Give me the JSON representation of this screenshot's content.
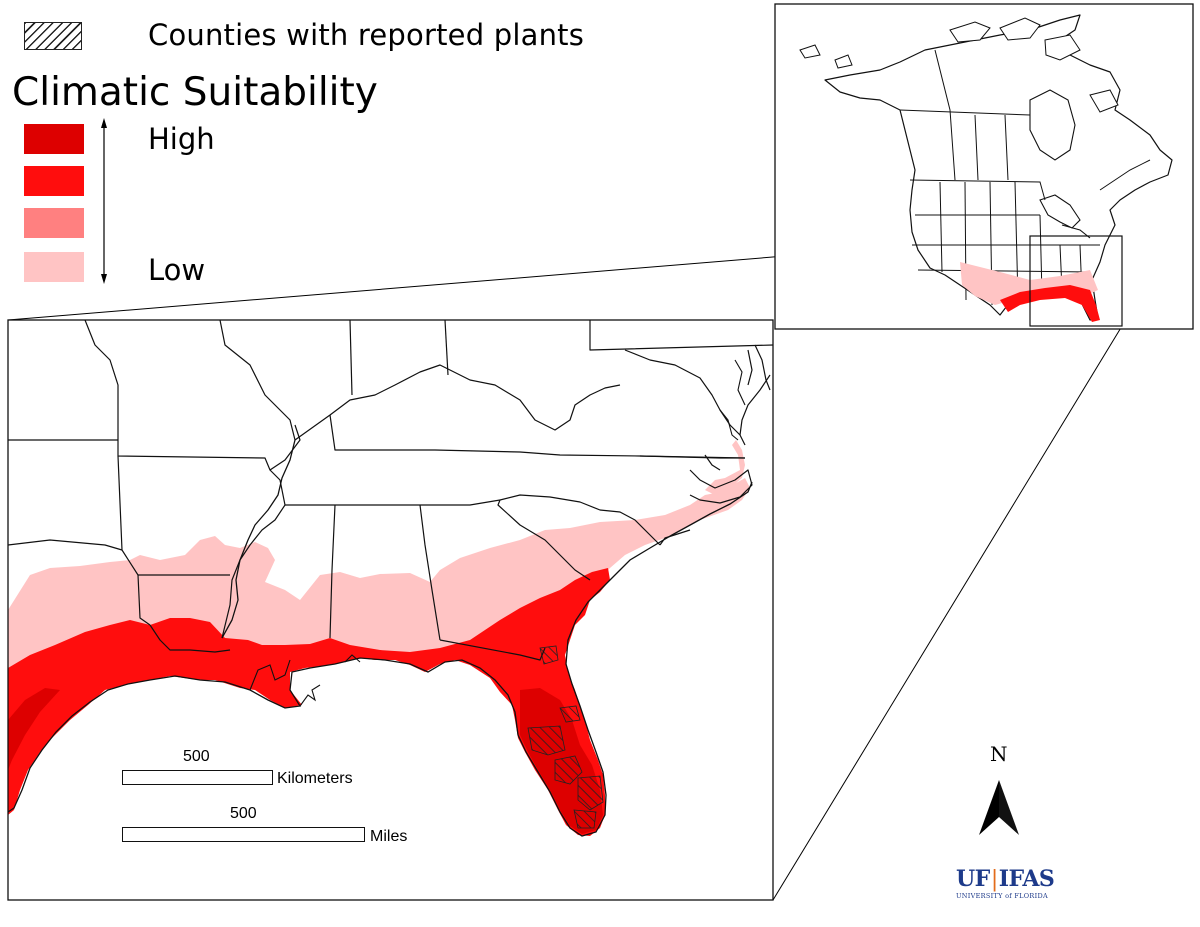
{
  "legend": {
    "hatch_label": "Counties with reported plants",
    "title": "Climatic Suitability",
    "high_label": "High",
    "low_label": "Low",
    "levels": [
      {
        "level": "high",
        "color": "#dd0000"
      },
      {
        "level": "medium-high",
        "color": "#ff0d0d"
      },
      {
        "level": "medium-low",
        "color": "#ff8080"
      },
      {
        "level": "low",
        "color": "#ffc4c4"
      }
    ]
  },
  "scale": {
    "km_value": "500",
    "km_unit": "Kilometers",
    "mi_value": "500",
    "mi_unit": "Miles"
  },
  "north": {
    "label": "N"
  },
  "logo": {
    "text_left": "UF",
    "text_right": "IFAS",
    "subtitle": "UNIVERSITY of FLORIDA"
  },
  "colors": {
    "low_pink": "#ffc4c4",
    "high_red": "#ff0d0d",
    "boundary": "#111111"
  }
}
